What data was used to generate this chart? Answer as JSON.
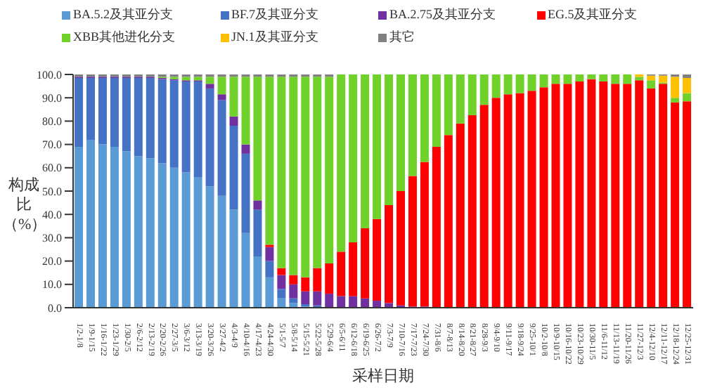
{
  "chart_data": {
    "type": "bar",
    "stacked": true,
    "xlabel": "采样日期",
    "ylabel": "构成比（%）",
    "legend": "top",
    "grid": false,
    "categories": [
      "1/2-1/8",
      "1/9-1/15",
      "1/16-1/22",
      "1/23-1/29",
      "1/30-2/5",
      "2/6-2/12",
      "2/13-2/19",
      "2/20-2/26",
      "2/27-3/5",
      "3/6-3/12",
      "3/13-3/19",
      "3/20-3/26",
      "3/27-4/2",
      "4/3-4/9",
      "4/10-4/16",
      "4/17-4/23",
      "4/24-4/30",
      "5/1-5/7",
      "5/8-5/14",
      "5/15-5/21",
      "5/22-5/28",
      "5/29-6/4",
      "6/5-6/11",
      "6/12-6/18",
      "6/19-6/25",
      "6/26-7/2",
      "7/3-7/9",
      "7/10-7/16",
      "7/17-7/23",
      "7/24-7/30",
      "7/31-8/6",
      "8/7-8/13",
      "8/14-8/20",
      "8/21-8/27",
      "8/28-9/3",
      "9/4-9/10",
      "9/11-9/17",
      "9/18-9/24",
      "9/25-10/1",
      "10/2-10/8",
      "10/9-10/15",
      "10/16-10/22",
      "10/23-10/29",
      "10/30-11/5",
      "11/6-11/12",
      "11/13-11/19",
      "11/20-11/26",
      "11/27-12/3",
      "12/4-12/10",
      "12/11-12/17",
      "12/18-12/24",
      "12/25-12/31"
    ],
    "ylim": [
      0,
      100
    ],
    "yticks": [
      {
        "value": 0,
        "label": "0.0"
      },
      {
        "value": 10,
        "label": "10.0"
      },
      {
        "value": 20,
        "label": "20.0"
      },
      {
        "value": 30,
        "label": "30.0"
      },
      {
        "value": 40,
        "label": "40.0"
      },
      {
        "value": 50,
        "label": "50.0"
      },
      {
        "value": 60,
        "label": "60.0"
      },
      {
        "value": 70,
        "label": "70.0"
      },
      {
        "value": 80,
        "label": "80.0"
      },
      {
        "value": 90,
        "label": "90.0"
      },
      {
        "value": 100,
        "label": "100.0"
      }
    ],
    "series": [
      {
        "name": "BA.5.2及其亚分支",
        "color": "#5b9bd5",
        "values": [
          69,
          72,
          70,
          69,
          67,
          65,
          64,
          62,
          60,
          58,
          56,
          52,
          48,
          42,
          32,
          22,
          13,
          4,
          2,
          0.5,
          0,
          0,
          0,
          0,
          0,
          0,
          0,
          0,
          0,
          0,
          0,
          0,
          0,
          0,
          0,
          0,
          0,
          0,
          0,
          0,
          0,
          0,
          0,
          0,
          0,
          0,
          0,
          0,
          0,
          0,
          0,
          0
        ]
      },
      {
        "name": "BF.7及其亚分支",
        "color": "#4472c4",
        "values": [
          29.5,
          26.5,
          28.5,
          29.5,
          31.5,
          33.5,
          34.5,
          36,
          37.5,
          39,
          41,
          42,
          41,
          36,
          34,
          20,
          7,
          4,
          2,
          1,
          1,
          0,
          0,
          0,
          0,
          0,
          0,
          0,
          0,
          0,
          0,
          0,
          0,
          0,
          0,
          0,
          0,
          0,
          0,
          0,
          0,
          0,
          0,
          0,
          0,
          0,
          0,
          0,
          0,
          0,
          0,
          0
        ]
      },
      {
        "name": "BA.2.75及其亚分支",
        "color": "#7030a0",
        "values": [
          0.5,
          0.5,
          0.5,
          0.5,
          0.5,
          0.5,
          0.5,
          0.5,
          0.5,
          0.5,
          0.5,
          2,
          2.5,
          4,
          4,
          4,
          6,
          6,
          6,
          5.5,
          6,
          6,
          5,
          5,
          4,
          3,
          2,
          1,
          0.5,
          0.5,
          0,
          0,
          0,
          0,
          0,
          0,
          0,
          0,
          0,
          0,
          0,
          0,
          0,
          0,
          0,
          0,
          0,
          0,
          0,
          0,
          0,
          0
        ]
      },
      {
        "name": "EG.5及其亚分支",
        "color": "#ff0000",
        "values": [
          0,
          0,
          0,
          0,
          0,
          0,
          0,
          0,
          0,
          0,
          0,
          0,
          0,
          0,
          0,
          0,
          1,
          3,
          4,
          6,
          10,
          13,
          19,
          23,
          30,
          35,
          42,
          49,
          56,
          62,
          69,
          74,
          79,
          82.5,
          87,
          90,
          91.5,
          92,
          93,
          94.5,
          96,
          96,
          97,
          98,
          97,
          96,
          96,
          97.5,
          94,
          96,
          88,
          88.5
        ]
      },
      {
        "name": "XBB其他进化分支",
        "color": "#6fd12a",
        "values": [
          0,
          0,
          0,
          0,
          0,
          0,
          0,
          0.5,
          1,
          1.5,
          1.5,
          3,
          7.5,
          17,
          29,
          53,
          72,
          82,
          85,
          86,
          82,
          80,
          76,
          72,
          66,
          62,
          56,
          50,
          43.5,
          37.5,
          31,
          26,
          21,
          17.5,
          13,
          10,
          8.5,
          8,
          7,
          5.5,
          4,
          4,
          3,
          2,
          3,
          4,
          4,
          1.5,
          3.5,
          0.5,
          2,
          3.5
        ]
      },
      {
        "name": "JN.1及其亚分支",
        "color": "#ffc000",
        "values": [
          0,
          0,
          0,
          0,
          0,
          0,
          0,
          0,
          0,
          0,
          0,
          0,
          0,
          0,
          0,
          0,
          0,
          0,
          0,
          0,
          0,
          0,
          0,
          0,
          0,
          0,
          0,
          0,
          0,
          0,
          0,
          0,
          0,
          0,
          0,
          0,
          0,
          0,
          0,
          0,
          0,
          0,
          0,
          0,
          0,
          0,
          0,
          1,
          2,
          3,
          9,
          6.5
        ]
      },
      {
        "name": "其它",
        "color": "#808080",
        "values": [
          1,
          1,
          1,
          1,
          1,
          1,
          1,
          1,
          1,
          1,
          1,
          1,
          1,
          1,
          1,
          1,
          1,
          1,
          1,
          1,
          1,
          1,
          0,
          0,
          0,
          0,
          0,
          0,
          0,
          0,
          0,
          0,
          0,
          0,
          0,
          0,
          0,
          0,
          0,
          0,
          0,
          0,
          0,
          0,
          0,
          0,
          0,
          0,
          0.5,
          0.5,
          1,
          1.5
        ]
      }
    ]
  }
}
